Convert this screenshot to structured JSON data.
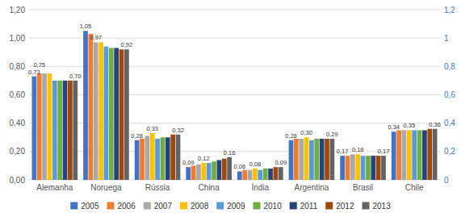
{
  "chart_data": {
    "type": "bar",
    "categories": [
      "Alemanha",
      "Noruega",
      "Rússia",
      "China",
      "Índia",
      "Argentina",
      "Brasil",
      "Chile"
    ],
    "series": [
      {
        "name": "2005",
        "color": "#4472C4",
        "values": [
          0.73,
          1.05,
          0.28,
          0.09,
          0.06,
          0.28,
          0.17,
          0.34
        ],
        "value_labels": [
          "0,73",
          "1,05",
          "0,28",
          "0,09",
          "0,06",
          "0,28",
          "0,17",
          "0,34"
        ]
      },
      {
        "name": "2006",
        "color": "#ED7D31",
        "values": [
          0.75,
          1.03,
          0.29,
          0.1,
          0.07,
          0.29,
          0.17,
          0.35
        ],
        "value_labels": [
          "0,75",
          null,
          null,
          null,
          null,
          null,
          null,
          null
        ]
      },
      {
        "name": "2007",
        "color": "#A9A9A9",
        "values": [
          0.75,
          0.97,
          0.31,
          0.11,
          0.07,
          0.29,
          0.18,
          0.35
        ],
        "value_labels": [
          null,
          "0,97",
          null,
          null,
          null,
          null,
          null,
          null
        ]
      },
      {
        "name": "2008",
        "color": "#FFC000",
        "values": [
          0.75,
          0.97,
          0.33,
          0.12,
          0.08,
          0.3,
          0.18,
          0.35
        ],
        "value_labels": [
          null,
          null,
          "0,33",
          "0,12",
          "0,08",
          "0,30",
          "0,18",
          "0,35"
        ]
      },
      {
        "name": "2009",
        "color": "#5B9BD5",
        "values": [
          0.7,
          0.94,
          0.29,
          0.12,
          0.07,
          0.28,
          0.17,
          0.35
        ]
      },
      {
        "name": "2010",
        "color": "#70AD47",
        "values": [
          0.7,
          0.93,
          0.3,
          0.13,
          0.08,
          0.29,
          0.17,
          0.35
        ]
      },
      {
        "name": "2011",
        "color": "#264478",
        "values": [
          0.7,
          0.93,
          0.3,
          0.14,
          0.08,
          0.29,
          0.17,
          0.35
        ]
      },
      {
        "name": "2012",
        "color": "#9E480E",
        "values": [
          0.7,
          0.92,
          0.32,
          0.15,
          0.09,
          0.29,
          0.17,
          0.36
        ]
      },
      {
        "name": "2013",
        "color": "#636363",
        "values": [
          0.7,
          0.92,
          0.32,
          0.16,
          0.09,
          0.29,
          0.17,
          0.36
        ],
        "value_labels": [
          "0,70",
          "0,92",
          "0,32",
          "0,16",
          "0,09",
          "0,29",
          "0,17",
          "0,36"
        ]
      }
    ],
    "ylim": [
      0,
      1.2
    ],
    "yticks": [
      {
        "value": 0,
        "label": "0,00"
      },
      {
        "value": 0.2,
        "label": "0,20"
      },
      {
        "value": 0.4,
        "label": "0,40"
      },
      {
        "value": 0.6,
        "label": "0,60"
      },
      {
        "value": 0.8,
        "label": "0,80"
      },
      {
        "value": 1.0,
        "label": "1,00"
      },
      {
        "value": 1.2,
        "label": "1,20"
      }
    ],
    "y2lim": [
      0,
      1.2
    ],
    "y2ticks": [
      0,
      {
        "value": 0.2,
        "label": "0,2"
      },
      {
        "value": 0.4,
        "label": "0,4"
      },
      {
        "value": 0.6,
        "label": "0,6"
      },
      {
        "value": 0.8,
        "label": "0,8"
      },
      1,
      {
        "value": 1.2,
        "label": "1,2"
      }
    ],
    "grid": true,
    "data_labels": true,
    "legend": "bottom"
  }
}
